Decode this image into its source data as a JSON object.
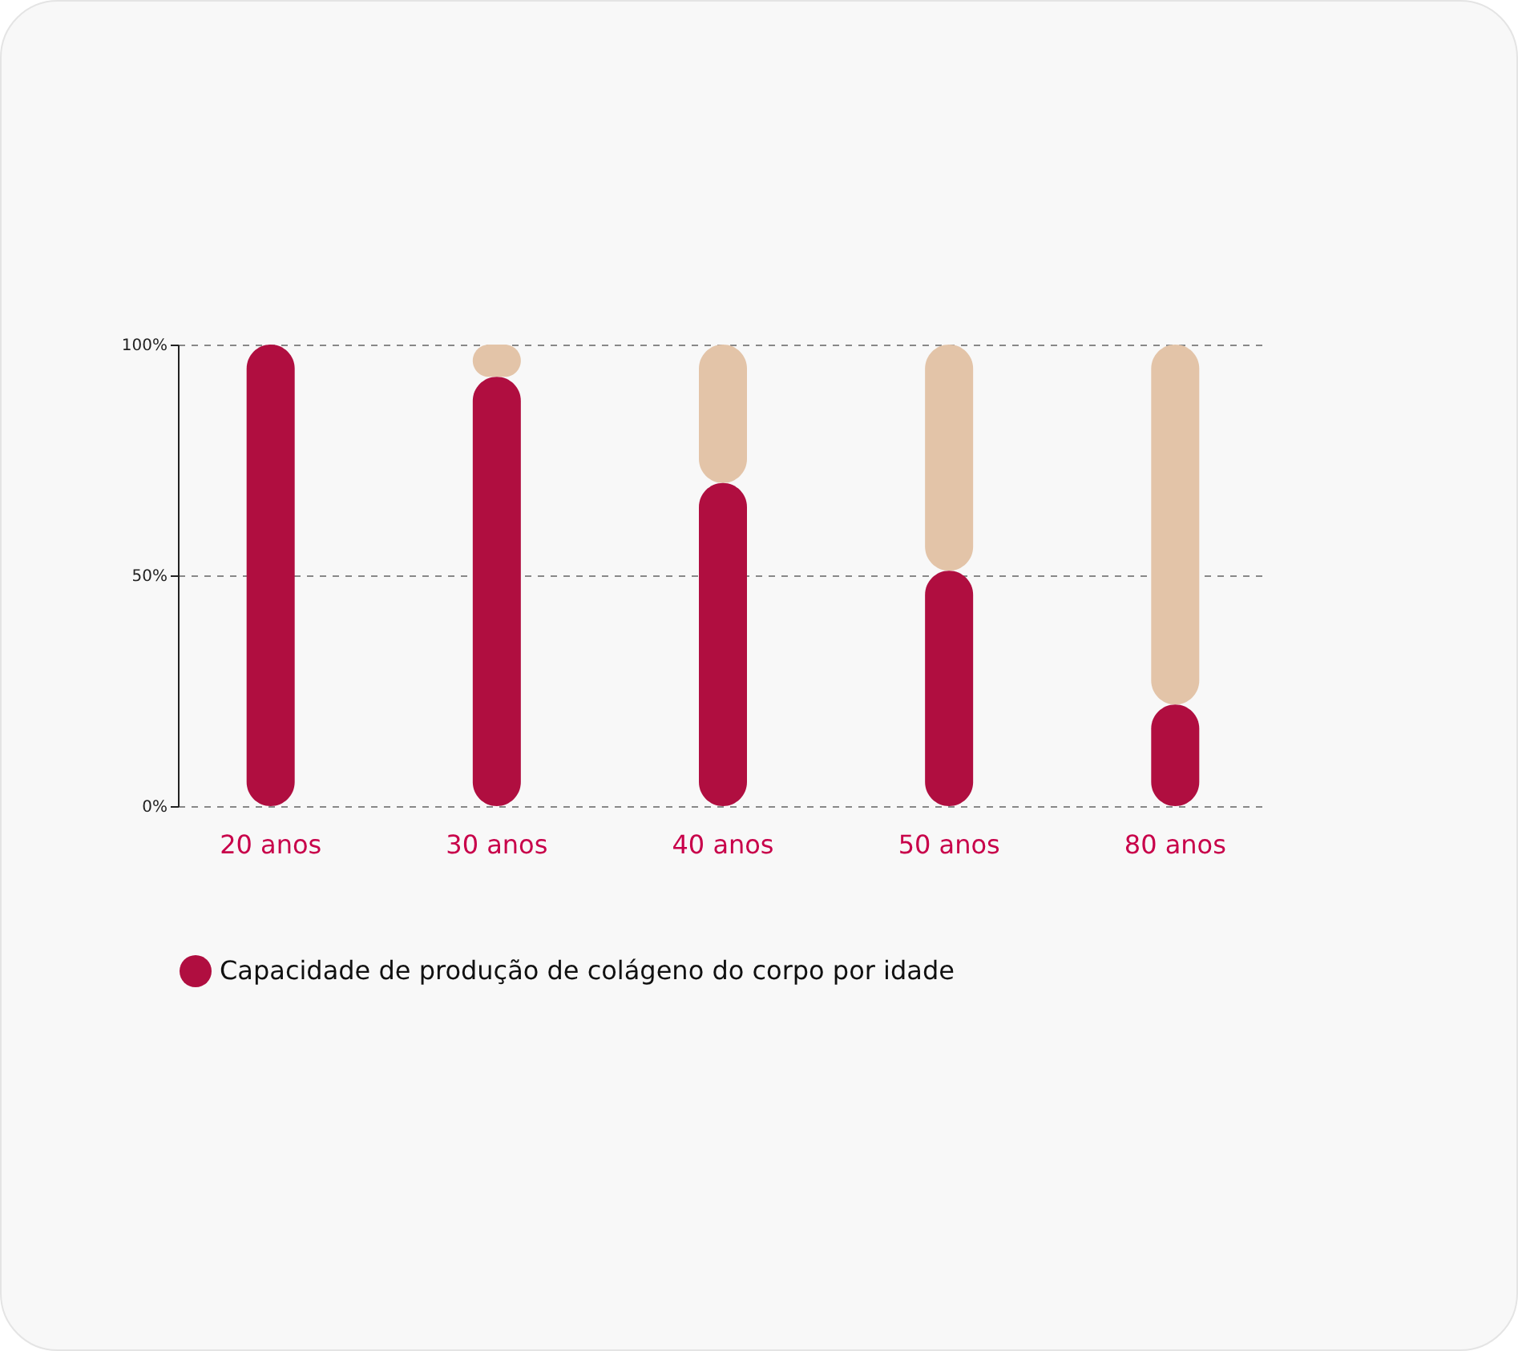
{
  "chart_data": {
    "type": "bar",
    "categories": [
      "20 anos",
      "30 anos",
      "40 anos",
      "50 anos",
      "80 anos"
    ],
    "stacked": true,
    "series": [
      {
        "name": "Capacidade de produção de colágeno do corpo por idade",
        "color": "#b00e40",
        "values": [
          100,
          93,
          70,
          51,
          22
        ]
      },
      {
        "color": "#e3c4a8",
        "values": [
          0,
          7,
          30,
          49,
          78
        ]
      }
    ],
    "ylim": [
      0,
      100
    ],
    "yticks": [
      {
        "value": 0,
        "label": "0%"
      },
      {
        "value": 50,
        "label": "50%"
      },
      {
        "value": 100,
        "label": "100%"
      }
    ],
    "grid": "y",
    "legend": "bottom"
  }
}
